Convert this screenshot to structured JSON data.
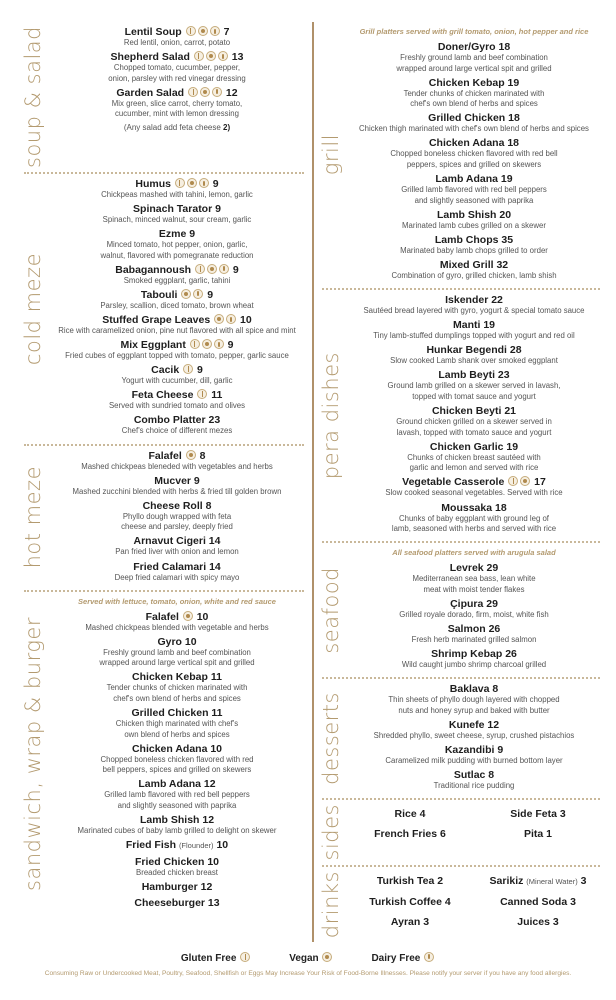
{
  "colors": {
    "accent": "#b39a6f",
    "divider": "#b0916a",
    "text": "#1e1e1e",
    "desc": "#555555"
  },
  "icon_legend": {
    "g": "wheat-gluten-free-icon",
    "v": "leaf-vegan-icon",
    "d": "bottle-dairy-free-icon"
  },
  "left": [
    {
      "label": "soup & salad",
      "items": [
        {
          "name": "Lentil Soup",
          "icons": [
            "g",
            "v",
            "d"
          ],
          "price": "7",
          "desc": [
            "Red lentil, onion, carrot, potato"
          ]
        },
        {
          "name": "Shepherd Salad",
          "icons": [
            "g",
            "v",
            "d"
          ],
          "price": "13",
          "desc": [
            "Chopped tomato, cucumber, pepper,",
            "onion, parsley with red vinegar dressing"
          ]
        },
        {
          "name": "Garden Salad",
          "icons": [
            "g",
            "v",
            "d"
          ],
          "price": "12",
          "desc": [
            "Mix green, slice carrot, cherry tomato,",
            "cucumber, mint with lemon dressing"
          ]
        },
        {
          "extra": "(Any salad add feta cheese",
          "extra_price": "2)"
        }
      ]
    },
    {
      "label": "cold meze",
      "items": [
        {
          "name": "Humus",
          "icons": [
            "g",
            "v",
            "d"
          ],
          "price": "9",
          "desc": [
            "Chickpeas mashed with tahini, lemon, garlic"
          ]
        },
        {
          "name": "Spinach Tarator",
          "icons": [],
          "price": "9",
          "desc": [
            "Spinach, minced walnut, sour cream, garlic"
          ]
        },
        {
          "name": "Ezme",
          "icons": [],
          "price": "9",
          "desc": [
            "Minced tomato, hot pepper, onion, garlic,",
            "walnut, flavored with pomegranate reduction"
          ]
        },
        {
          "name": "Babagannoush",
          "icons": [
            "g",
            "v",
            "d"
          ],
          "price": "9",
          "desc": [
            "Smoked eggplant, garlic, tahini"
          ]
        },
        {
          "name": "Tabouli",
          "icons": [
            "v",
            "d"
          ],
          "price": "9",
          "desc": [
            "Parsley, scallion, diced tomato, brown wheat"
          ]
        },
        {
          "name": "Stuffed Grape Leaves",
          "icons": [
            "v",
            "d"
          ],
          "price": "10",
          "desc": [
            "Rice with caramelized onion, pine nut flavored with all spice and mint"
          ]
        },
        {
          "name": "Mix Eggplant",
          "icons": [
            "g",
            "v",
            "d"
          ],
          "price": "9",
          "desc": [
            "Fried cubes of eggplant topped with tomato, pepper, garlic sauce"
          ]
        },
        {
          "name": "Cacik",
          "icons": [
            "g"
          ],
          "price": "9",
          "desc": [
            "Yogurt with cucumber, dill, garlic"
          ]
        },
        {
          "name": "Feta Cheese",
          "icons": [
            "g"
          ],
          "price": "11",
          "desc": [
            "Served with sundried tomato and olives"
          ]
        },
        {
          "name": "Combo Platter",
          "icons": [],
          "price": "23",
          "desc": [
            "Chef's choice of different mezes"
          ]
        }
      ]
    },
    {
      "label": "hot meze",
      "items": [
        {
          "name": "Falafel",
          "icons": [
            "v"
          ],
          "price": "8",
          "desc": [
            "Mashed chickpeas bleneded with vegetables and herbs"
          ]
        },
        {
          "name": "Mucver",
          "icons": [],
          "price": "9",
          "desc": [
            "Mashed zucchini blended with herbs & fried till golden brown"
          ]
        },
        {
          "name": "Cheese Roll",
          "icons": [],
          "price": "8",
          "desc": [
            "Phyllo dough wrapped with feta",
            "cheese and parsley, deeply fried"
          ]
        },
        {
          "name": "Arnavut Cigeri",
          "icons": [],
          "price": "14",
          "desc": [
            "Pan fried liver with onion and lemon"
          ]
        },
        {
          "name": "Fried Calamari",
          "icons": [],
          "price": "14",
          "desc": [
            "Deep fried calamari with spicy mayo"
          ]
        }
      ]
    },
    {
      "label": "sandwich, wrap & burger",
      "note": "Served with  lettuce, tomato, onion, white and red sauce",
      "items": [
        {
          "name": "Falafel",
          "icons": [
            "v"
          ],
          "price": "10",
          "desc": [
            "Mashed chickpeas blended with vegetable and herbs"
          ]
        },
        {
          "name": "Gyro",
          "icons": [],
          "price": "10",
          "desc": [
            "Freshly ground lamb and beef combination",
            "wrapped around large vertical spit and grilled"
          ]
        },
        {
          "name": "Chicken Kebap",
          "icons": [],
          "price": "11",
          "desc": [
            "Tender chunks of chicken marinated with",
            "chef's own blend of herbs and spices"
          ]
        },
        {
          "name": "Grilled Chicken",
          "icons": [],
          "price": "11",
          "desc": [
            "Chicken thigh marinated with chef's",
            "own blend of herbs and spices"
          ]
        },
        {
          "name": "Chicken Adana",
          "icons": [],
          "price": "10",
          "desc": [
            "Chopped boneless chicken flavored with red",
            "bell peppers, spices and grilled on skewers"
          ]
        },
        {
          "name": "Lamb Adana",
          "icons": [],
          "price": "12",
          "desc": [
            "Grilled lamb flavored with red bell peppers",
            "and slightly seasoned with paprika"
          ]
        },
        {
          "name": "Lamb Shish",
          "icons": [],
          "price": "12",
          "desc": [
            "Marinated cubes of baby lamb grilled to delight on skewer"
          ]
        },
        {
          "name": "Fried Fish",
          "sub": "(Flounder)",
          "icons": [],
          "price": "10",
          "desc": []
        },
        {
          "name": "Fried Chicken",
          "icons": [],
          "price": "10",
          "desc": [
            "Breaded chicken breast"
          ]
        },
        {
          "name": "Hamburger",
          "icons": [],
          "price": "12",
          "desc": []
        },
        {
          "name": "Cheeseburger",
          "icons": [],
          "price": "13",
          "desc": []
        }
      ]
    }
  ],
  "right": [
    {
      "label": "grill",
      "note": "Grill platters served with grill tomato, onion, hot pepper and rice",
      "items": [
        {
          "name": "Doner/Gyro",
          "icons": [],
          "price": "18",
          "desc": [
            "Freshly ground lamb and beef combination",
            "wrapped around large vertical spit and grilled"
          ]
        },
        {
          "name": "Chicken Kebap",
          "icons": [],
          "price": "19",
          "desc": [
            "Tender chunks of chicken marinated with",
            "chef's own blend of herbs and spices"
          ]
        },
        {
          "name": "Grilled Chicken",
          "icons": [],
          "price": "18",
          "desc": [
            "Chicken thigh marinated with chef's own blend of herbs and spices"
          ]
        },
        {
          "name": "Chicken Adana",
          "icons": [],
          "price": "18",
          "desc": [
            "Chopped boneless chicken flavored with red bell",
            "peppers, spices and grilled on skewers"
          ]
        },
        {
          "name": "Lamb Adana",
          "icons": [],
          "price": "19",
          "desc": [
            "Grilled lamb flavored with red bell peppers",
            "and slightly seasoned with paprika"
          ]
        },
        {
          "name": "Lamb Shish",
          "icons": [],
          "price": "20",
          "desc": [
            "Marinated lamb cubes grilled on a skewer"
          ]
        },
        {
          "name": "Lamb Chops",
          "icons": [],
          "price": "35",
          "desc": [
            "Marinated baby lamb chops grilled to order"
          ]
        },
        {
          "name": "Mixed Grill",
          "icons": [],
          "price": "32",
          "desc": [
            "Combination of gyro, grilled chicken, lamb shish"
          ]
        }
      ]
    },
    {
      "label": "pera dishes",
      "items": [
        {
          "name": "Iskender",
          "icons": [],
          "price": "22",
          "desc": [
            "Sautéed bread layered with gyro, yogurt & special tomato sauce"
          ]
        },
        {
          "name": "Manti",
          "icons": [],
          "price": "19",
          "desc": [
            "Tiny lamb-stuffed dumplings topped with yogurt and red  oil"
          ]
        },
        {
          "name": "Hunkar Begendi",
          "icons": [],
          "price": "28",
          "desc": [
            "Slow cooked Lamb shank over smoked eggplant"
          ]
        },
        {
          "name": "Lamb Beyti",
          "icons": [],
          "price": "23",
          "desc": [
            "Ground lamb grilled on a skewer served in lavash,",
            "topped with tomat sauce and yogurt"
          ]
        },
        {
          "name": "Chicken Beyti",
          "icons": [],
          "price": "21",
          "desc": [
            "Ground chicken grilled on a skewer served in",
            "lavash, topped with tomato sauce and yogurt"
          ]
        },
        {
          "name": "Chicken Garlic",
          "icons": [],
          "price": "19",
          "desc": [
            "Chunks of chicken breast sautéed with",
            "garlic and lemon and served with rice"
          ]
        },
        {
          "name": "Vegetable Casserole",
          "icons": [
            "g",
            "v"
          ],
          "price": "17",
          "desc": [
            "Slow cooked seasonal vegetables. Served with rice"
          ]
        },
        {
          "name": "Moussaka",
          "icons": [],
          "price": "18",
          "desc": [
            "Chunks of baby eggplant with ground leg of",
            "lamb, seasoned with herbs and served with rice"
          ]
        }
      ]
    },
    {
      "label": "seafood",
      "note": "All seafood platters served with arugula salad",
      "items": [
        {
          "name": "Levrek",
          "icons": [],
          "price": "29",
          "desc": [
            "Mediterranean sea bass, lean white",
            "meat with moist tender flakes"
          ]
        },
        {
          "name": "Çipura",
          "icons": [],
          "price": "29",
          "desc": [
            "Grilled royale dorado, firm, moist, white fish"
          ]
        },
        {
          "name": "Salmon",
          "icons": [],
          "price": "26",
          "desc": [
            "Fresh herb marinated grilled salmon"
          ]
        },
        {
          "name": "Shrimp Kebap",
          "icons": [],
          "price": "26",
          "desc": [
            "Wild caught jumbo shrimp charcoal grilled"
          ]
        }
      ]
    },
    {
      "label": "desserts",
      "items": [
        {
          "name": "Baklava",
          "icons": [],
          "price": "8",
          "desc": [
            "Thin sheets of phyllo dough layered with chopped",
            "nuts and honey syrup and baked with butter"
          ]
        },
        {
          "name": "Kunefe",
          "icons": [],
          "price": "12",
          "desc": [
            "Shredded phyllo, sweet cheese, syrup, crushed pistachios"
          ]
        },
        {
          "name": "Kazandibi",
          "icons": [],
          "price": "9",
          "desc": [
            "Caramelized milk pudding with burned bottom layer"
          ]
        },
        {
          "name": "Sutlac",
          "icons": [],
          "price": "8",
          "desc": [
            "Traditional rice pudding"
          ]
        }
      ]
    },
    {
      "label": "sides",
      "grid": true,
      "items": [
        {
          "name": "Rice",
          "price": "4"
        },
        {
          "name": "Side Feta",
          "price": "3"
        },
        {
          "name": "French Fries",
          "price": "6"
        },
        {
          "name": "Pita",
          "price": "1"
        }
      ]
    },
    {
      "label": "drinks",
      "grid": true,
      "items": [
        {
          "name": "Turkish Tea",
          "price": "2"
        },
        {
          "name": "Sarikiz",
          "sub": "(Mineral Water)",
          "price": "3"
        },
        {
          "name": "Turkish Coffee",
          "price": "4"
        },
        {
          "name": "Canned Soda",
          "price": "3"
        },
        {
          "name": "Ayran",
          "price": "3"
        },
        {
          "name": "Juices",
          "price": "3"
        }
      ]
    }
  ],
  "footer": {
    "legend": [
      {
        "label": "Gluten Free",
        "icon": "g"
      },
      {
        "label": "Vegan",
        "icon": "v"
      },
      {
        "label": "Dairy Free",
        "icon": "d"
      }
    ],
    "disclaimer": "Consuming Raw or Undercooked Meat, Poultry, Seafood, Shellfish or Eggs May Increase Your Risk of Food-Borne Illnesses. Please notify your server if you have any food allergies."
  }
}
